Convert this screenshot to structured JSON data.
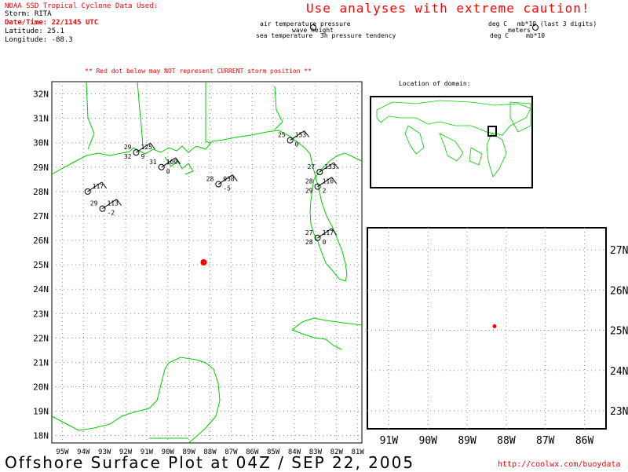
{
  "header": {
    "source": "NOAA SSD Tropical Cyclone Data Used:",
    "storm": "Storm: RITA",
    "datetime": "Date/Time: 22/1145 UTC",
    "latitude": "Latitude: 25.1",
    "longitude": "Longitude: -88.3"
  },
  "caution": "Use analyses with extreme caution!",
  "key": {
    "air_temp": "air temperature",
    "pressure": "pressure",
    "wave_height": "wave height",
    "sea_temp": "sea temperature",
    "tendency": "3h pressure tendency",
    "unit_air": "deg C",
    "unit_pressure": "mb*10 (last 3 digits)",
    "unit_wave": "meters",
    "unit_sea": "deg C",
    "unit_tendency": "mb*10"
  },
  "warning": "** Red dot below may NOT represent CURRENT storm position **",
  "location_label": "Location of domain:",
  "footer": "Offshore Surface Plot at 04Z / SEP 22, 2005",
  "url": "http://coolwx.com/buoydata",
  "colors": {
    "red": "#ff0000",
    "coast": "#00cc00",
    "grid": "#888888"
  },
  "main_map": {
    "lat_labels": [
      "32N",
      "31N",
      "30N",
      "29N",
      "28N",
      "27N",
      "26N",
      "25N",
      "24N",
      "23N",
      "22N",
      "21N",
      "20N",
      "19N",
      "18N"
    ],
    "lon_labels": [
      "95W",
      "94W",
      "93W",
      "92W",
      "91W",
      "90W",
      "89W",
      "88W",
      "87W",
      "86W",
      "85W",
      "84W",
      "83W",
      "82W",
      "81W"
    ],
    "storm": {
      "lat": 25.1,
      "lon": -88.3
    },
    "stations": [
      {
        "id": "st-a",
        "lat": 28.0,
        "lon": -93.8,
        "air": "",
        "pres": "117",
        "sea": "",
        "tend": ""
      },
      {
        "id": "st-b",
        "lat": 27.3,
        "lon": -93.1,
        "air": "29",
        "pres": "113",
        "sea": "",
        "tend": "-2"
      },
      {
        "id": "st-c",
        "lat": 29.6,
        "lon": -91.5,
        "air": "29",
        "pres": "125",
        "sea": "32",
        "tend": "9"
      },
      {
        "id": "st-d",
        "lat": 29.0,
        "lon": -90.3,
        "air": "31",
        "pres": "109",
        "sea": "",
        "tend": "0"
      },
      {
        "id": "st-e",
        "lat": 28.3,
        "lon": -87.6,
        "air": "28",
        "pres": "030",
        "sea": "",
        "tend": "-5"
      },
      {
        "id": "st-f",
        "lat": 30.1,
        "lon": -84.2,
        "air": "25",
        "pres": "153",
        "sea": "",
        "tend": "0"
      },
      {
        "id": "st-g",
        "lat": 28.8,
        "lon": -82.8,
        "air": "27",
        "pres": "133",
        "sea": "",
        "tend": ""
      },
      {
        "id": "st-h",
        "lat": 28.2,
        "lon": -82.9,
        "air": "28",
        "pres": "116",
        "sea": "29",
        "tend": "2"
      },
      {
        "id": "st-i",
        "lat": 26.1,
        "lon": -82.9,
        "air": "27",
        "pres": "117",
        "sea": "28",
        "tend": "0"
      }
    ]
  },
  "zoom_map": {
    "lat_labels": [
      "27N",
      "26N",
      "25N",
      "24N",
      "23N"
    ],
    "lon_labels": [
      "91W",
      "90W",
      "89W",
      "88W",
      "87W",
      "86W"
    ]
  }
}
